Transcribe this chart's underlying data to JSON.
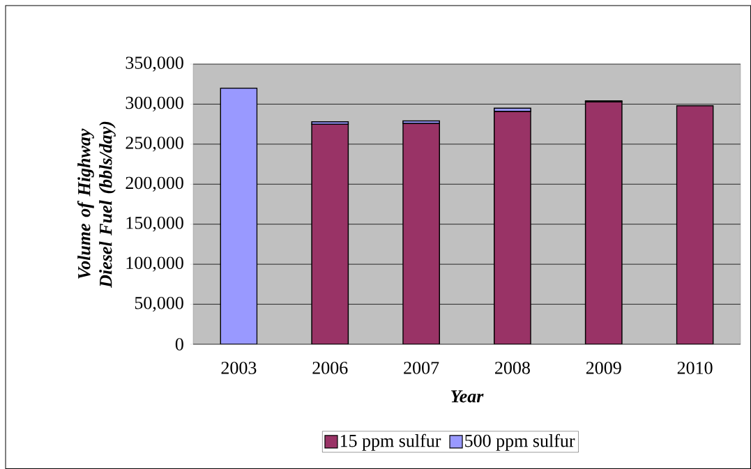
{
  "chart_data": {
    "type": "bar",
    "stacked": true,
    "xlabel": "Year",
    "ylabel": "Volume of Highway Diesel Fuel (bbls/day)",
    "categories": [
      "2003",
      "2006",
      "2007",
      "2008",
      "2009",
      "2010"
    ],
    "series": [
      {
        "name": "15 ppm sulfur",
        "color": "#993366",
        "values": [
          null,
          275000,
          276000,
          291000,
          303000,
          298000
        ]
      },
      {
        "name": "500 ppm sulfur",
        "color": "#9999ff",
        "values": [
          320000,
          3000,
          3000,
          4000,
          1000,
          null
        ]
      }
    ],
    "ylim": [
      0,
      350000
    ],
    "yticks": [
      0,
      {
        "value": 50000,
        "label": "50,000"
      },
      {
        "value": 100000,
        "label": "100,000"
      },
      {
        "value": 150000,
        "label": "150,000"
      },
      {
        "value": 200000,
        "label": "200,000"
      },
      {
        "value": 250000,
        "label": "250,000"
      },
      {
        "value": 300000,
        "label": "300,000"
      },
      {
        "value": 350000,
        "label": "350,000"
      }
    ],
    "grid": "y",
    "legend": "bottom"
  }
}
